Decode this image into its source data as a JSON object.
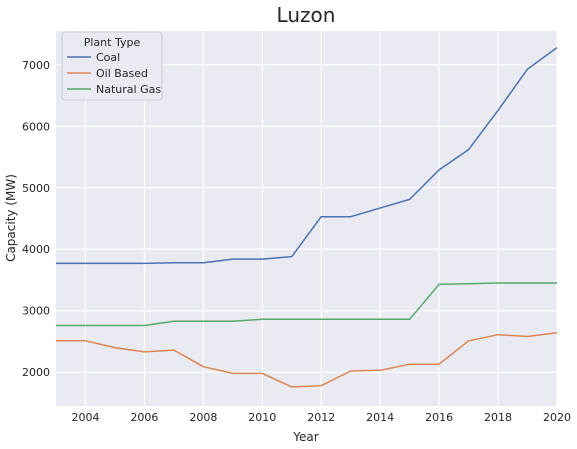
{
  "chart_data": {
    "type": "line",
    "title": "Luzon",
    "xlabel": "Year",
    "ylabel": "Capacity (MW)",
    "xlim": [
      2003,
      2020
    ],
    "ylim": [
      1450,
      7550
    ],
    "x_ticks": [
      "2004",
      "2006",
      "2008",
      "2010",
      "2012",
      "2014",
      "2016",
      "2018",
      "2020"
    ],
    "y_ticks": [
      "2000",
      "3000",
      "4000",
      "5000",
      "6000",
      "7000"
    ],
    "grid": true,
    "legend": {
      "title": "Plant Type",
      "position": "top-left"
    },
    "x": [
      2003,
      2004,
      2005,
      2006,
      2007,
      2008,
      2009,
      2010,
      2011,
      2012,
      2013,
      2014,
      2015,
      2016,
      2017,
      2018,
      2019,
      2020
    ],
    "series": [
      {
        "name": "Coal",
        "color": "#4c72b0",
        "values": [
          3770,
          3770,
          3770,
          3770,
          3780,
          3780,
          3840,
          3840,
          3880,
          4530,
          4530,
          4670,
          4810,
          5290,
          5620,
          6260,
          6930,
          7280
        ]
      },
      {
        "name": "Oil Based",
        "color": "#dd8452",
        "values": [
          2510,
          2510,
          2400,
          2330,
          2360,
          2090,
          1980,
          1980,
          1760,
          1780,
          2020,
          2030,
          2130,
          2130,
          2510,
          2610,
          2580,
          2640
        ]
      },
      {
        "name": "Natural Gas",
        "color": "#55a868",
        "values": [
          2760,
          2760,
          2760,
          2760,
          2830,
          2830,
          2830,
          2860,
          2860,
          2860,
          2860,
          2860,
          2860,
          3430,
          3440,
          3450,
          3450,
          3450
        ]
      }
    ]
  }
}
